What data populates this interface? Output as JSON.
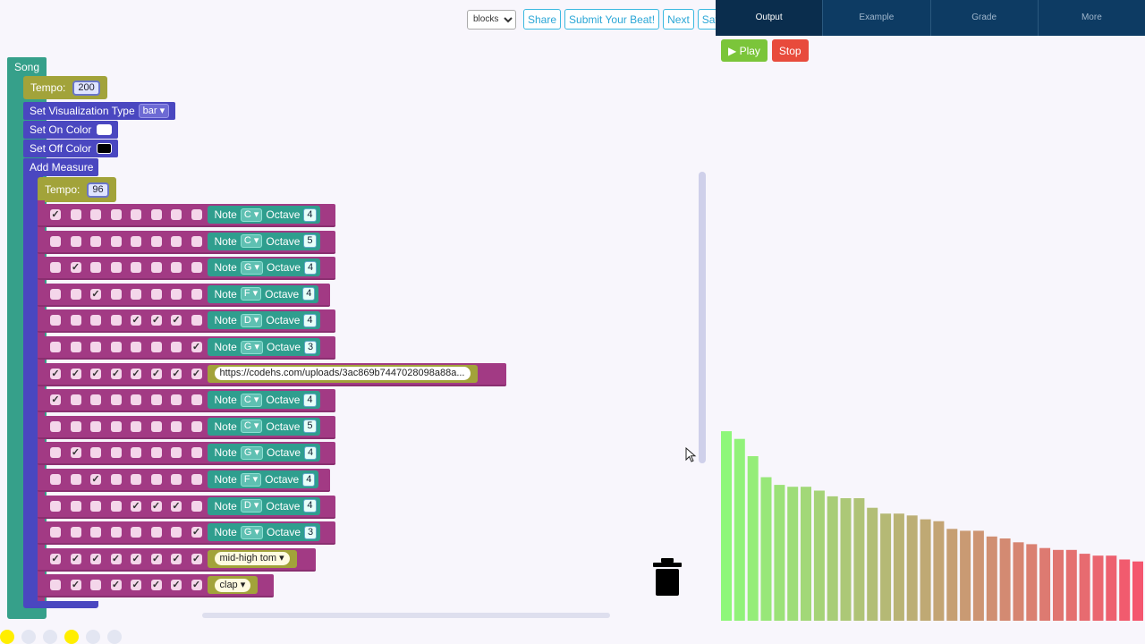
{
  "toolbar": {
    "mode": "blocks",
    "share": "Share",
    "submit": "Submit Your Beat!",
    "next": "Next",
    "save": "Save"
  },
  "song": {
    "label": "Song",
    "tempo_label": "Tempo:",
    "tempo": "200",
    "viz_label": "Set Visualization Type",
    "viz_type": "bar",
    "on_color_label": "Set On Color",
    "on_color": "#ffffff",
    "off_color_label": "Set Off Color",
    "off_color": "#000000",
    "measure_label": "Add Measure",
    "measure_tempo_label": "Tempo:",
    "measure_tempo": "96"
  },
  "rows": [
    {
      "checks": [
        1,
        0,
        0,
        0,
        0,
        0,
        0,
        0
      ],
      "type": "note",
      "note": "C",
      "octave": "4"
    },
    {
      "checks": [
        0,
        0,
        0,
        0,
        0,
        0,
        0,
        0
      ],
      "type": "note",
      "note": "C",
      "octave": "5"
    },
    {
      "checks": [
        0,
        1,
        0,
        0,
        0,
        0,
        0,
        0
      ],
      "type": "note",
      "note": "G",
      "octave": "4"
    },
    {
      "checks": [
        0,
        0,
        1,
        0,
        0,
        0,
        0,
        0
      ],
      "type": "note",
      "note": "F",
      "octave": "4"
    },
    {
      "checks": [
        0,
        0,
        0,
        0,
        1,
        1,
        1,
        0
      ],
      "type": "note",
      "note": "D",
      "octave": "4"
    },
    {
      "checks": [
        0,
        0,
        0,
        0,
        0,
        0,
        0,
        1
      ],
      "type": "note",
      "note": "G",
      "octave": "3"
    },
    {
      "checks": [
        1,
        1,
        1,
        1,
        1,
        1,
        1,
        1
      ],
      "type": "url",
      "value": "https://codehs.com/uploads/3ac869b7447028098a88a..."
    },
    {
      "checks": [
        1,
        0,
        0,
        0,
        0,
        0,
        0,
        0
      ],
      "type": "note",
      "note": "C",
      "octave": "4"
    },
    {
      "checks": [
        0,
        0,
        0,
        0,
        0,
        0,
        0,
        0
      ],
      "type": "note",
      "note": "C",
      "octave": "5"
    },
    {
      "checks": [
        0,
        1,
        0,
        0,
        0,
        0,
        0,
        0
      ],
      "type": "note",
      "note": "G",
      "octave": "4"
    },
    {
      "checks": [
        0,
        0,
        1,
        0,
        0,
        0,
        0,
        0
      ],
      "type": "note",
      "note": "F",
      "octave": "4"
    },
    {
      "checks": [
        0,
        0,
        0,
        0,
        1,
        1,
        1,
        0
      ],
      "type": "note",
      "note": "D",
      "octave": "4"
    },
    {
      "checks": [
        0,
        0,
        0,
        0,
        0,
        0,
        0,
        1
      ],
      "type": "note",
      "note": "G",
      "octave": "3"
    },
    {
      "checks": [
        1,
        1,
        1,
        1,
        1,
        1,
        1,
        1
      ],
      "type": "drum",
      "value": "mid-high tom"
    },
    {
      "checks": [
        0,
        1,
        0,
        1,
        1,
        1,
        1,
        1
      ],
      "type": "drum",
      "value": "clap"
    }
  ],
  "labels": {
    "note": "Note",
    "octave": "Octave",
    "check_glyph": "✓"
  },
  "panel": {
    "tabs": [
      "Output",
      "Example",
      "Grade",
      "More"
    ],
    "play": "▶ Play",
    "stop": "Stop",
    "viz_levels": [
      0.99,
      0.95,
      0.86,
      0.75,
      0.71,
      0.7,
      0.7,
      0.68,
      0.65,
      0.64,
      0.64,
      0.59,
      0.56,
      0.56,
      0.55,
      0.53,
      0.52,
      0.48,
      0.47,
      0.47,
      0.44,
      0.43,
      0.41,
      0.4,
      0.38,
      0.37,
      0.37,
      0.35,
      0.34,
      0.34,
      0.32,
      0.31
    ],
    "viz_color_start": "#8ef77a",
    "viz_color_end": "#f4566e"
  },
  "icons": {
    "trash": "trash-icon",
    "cursor": "cursor-icon",
    "play": "play-icon"
  }
}
